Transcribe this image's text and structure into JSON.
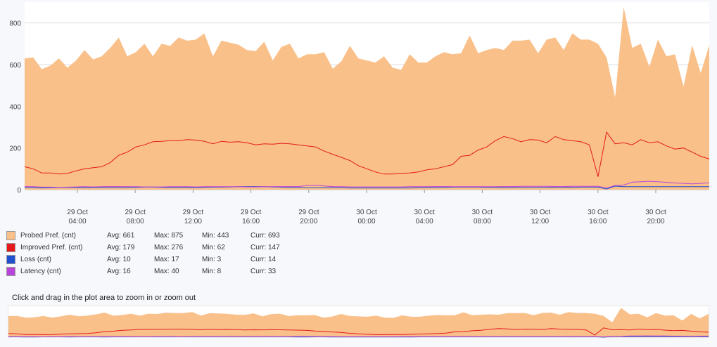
{
  "chart_data": {
    "type": "area",
    "ylim": [
      0,
      900
    ],
    "yticks": [
      0,
      200,
      400,
      600,
      800
    ],
    "xticks": [
      [
        "29 Oct",
        "04:00"
      ],
      [
        "29 Oct",
        "08:00"
      ],
      [
        "29 Oct",
        "12:00"
      ],
      [
        "29 Oct",
        "16:00"
      ],
      [
        "29 Oct",
        "20:00"
      ],
      [
        "30 Oct",
        "00:00"
      ],
      [
        "30 Oct",
        "04:00"
      ],
      [
        "30 Oct",
        "08:00"
      ],
      [
        "30 Oct",
        "12:00"
      ],
      [
        "30 Oct",
        "16:00"
      ],
      [
        "30 Oct",
        "20:00"
      ]
    ],
    "series": [
      {
        "name": "Probed Pref. (cnt)",
        "color": "#f9c08a",
        "style": "area",
        "values": [
          630,
          635,
          578,
          595,
          630,
          585,
          620,
          670,
          625,
          640,
          680,
          730,
          640,
          660,
          700,
          640,
          700,
          690,
          730,
          715,
          720,
          750,
          640,
          715,
          705,
          695,
          670,
          665,
          710,
          620,
          685,
          700,
          630,
          650,
          650,
          660,
          580,
          615,
          690,
          630,
          620,
          610,
          640,
          585,
          575,
          650,
          610,
          610,
          640,
          660,
          650,
          655,
          740,
          655,
          670,
          680,
          670,
          715,
          715,
          720,
          655,
          720,
          730,
          670,
          750,
          720,
          720,
          700,
          635,
          443,
          875,
          680,
          700,
          590,
          720,
          640,
          650,
          495,
          693,
          560,
          693
        ]
      },
      {
        "name": "Improved Pref. (cnt)",
        "color": "#e41a1c",
        "style": "line",
        "values": [
          110,
          100,
          80,
          80,
          75,
          78,
          90,
          100,
          105,
          110,
          130,
          165,
          180,
          205,
          215,
          230,
          232,
          235,
          235,
          240,
          238,
          232,
          220,
          232,
          228,
          230,
          225,
          215,
          220,
          218,
          222,
          220,
          215,
          210,
          205,
          185,
          170,
          155,
          140,
          115,
          100,
          85,
          75,
          75,
          78,
          80,
          85,
          95,
          100,
          110,
          120,
          160,
          165,
          190,
          205,
          235,
          255,
          245,
          230,
          240,
          238,
          225,
          255,
          240,
          235,
          230,
          215,
          62,
          276,
          220,
          225,
          215,
          240,
          225,
          230,
          210,
          195,
          200,
          180,
          160,
          147
        ]
      },
      {
        "name": "Loss (cnt)",
        "color": "#2050d0",
        "style": "line",
        "values": [
          10,
          10,
          8,
          9,
          10,
          11,
          10,
          9,
          10,
          11,
          10,
          9,
          10,
          11,
          12,
          12,
          11,
          10,
          10,
          10,
          10,
          11,
          12,
          12,
          13,
          14,
          15,
          15,
          14,
          13,
          12,
          11,
          10,
          9,
          9,
          10,
          10,
          9,
          8,
          8,
          8,
          8,
          8,
          8,
          8,
          8,
          9,
          10,
          10,
          11,
          12,
          12,
          12,
          12,
          11,
          11,
          10,
          10,
          10,
          10,
          10,
          11,
          11,
          11,
          11,
          12,
          12,
          12,
          3,
          17,
          14,
          14,
          14,
          14,
          14,
          14,
          14,
          14,
          14,
          14,
          14
        ]
      },
      {
        "name": "Latency (cnt)",
        "color": "#b845d9",
        "style": "line",
        "values": [
          15,
          14,
          12,
          12,
          11,
          12,
          13,
          14,
          13,
          14,
          15,
          15,
          14,
          14,
          13,
          13,
          13,
          14,
          14,
          14,
          13,
          14,
          14,
          14,
          14,
          14,
          13,
          13,
          14,
          15,
          15,
          15,
          15,
          20,
          21,
          18,
          15,
          14,
          13,
          13,
          13,
          13,
          13,
          13,
          13,
          14,
          14,
          14,
          15,
          15,
          14,
          14,
          14,
          14,
          14,
          14,
          15,
          15,
          16,
          16,
          16,
          16,
          15,
          15,
          16,
          16,
          16,
          16,
          8,
          20,
          22,
          36,
          38,
          40,
          38,
          35,
          32,
          30,
          28,
          30,
          33
        ]
      }
    ]
  },
  "legend": [
    {
      "name": "Probed Pref. (cnt)",
      "color": "#f9c08a",
      "avg": "Avg: 661",
      "max": "Max: 875",
      "min": "Min: 443",
      "curr": "Curr: 693"
    },
    {
      "name": "Improved Pref. (cnt)",
      "color": "#e41a1c",
      "avg": "Avg: 179",
      "max": "Max: 276",
      "min": "Min: 62",
      "curr": "Curr: 147"
    },
    {
      "name": "Loss (cnt)",
      "color": "#2050d0",
      "avg": "Avg: 10",
      "max": "Max: 17",
      "min": "Min: 3",
      "curr": "Curr: 14"
    },
    {
      "name": "Latency (cnt)",
      "color": "#b845d9",
      "avg": "Avg: 16",
      "max": "Max: 40",
      "min": "Min: 8",
      "curr": "Curr: 33"
    }
  ],
  "hint": "Click and drag in the plot area to zoom in or zoom out"
}
